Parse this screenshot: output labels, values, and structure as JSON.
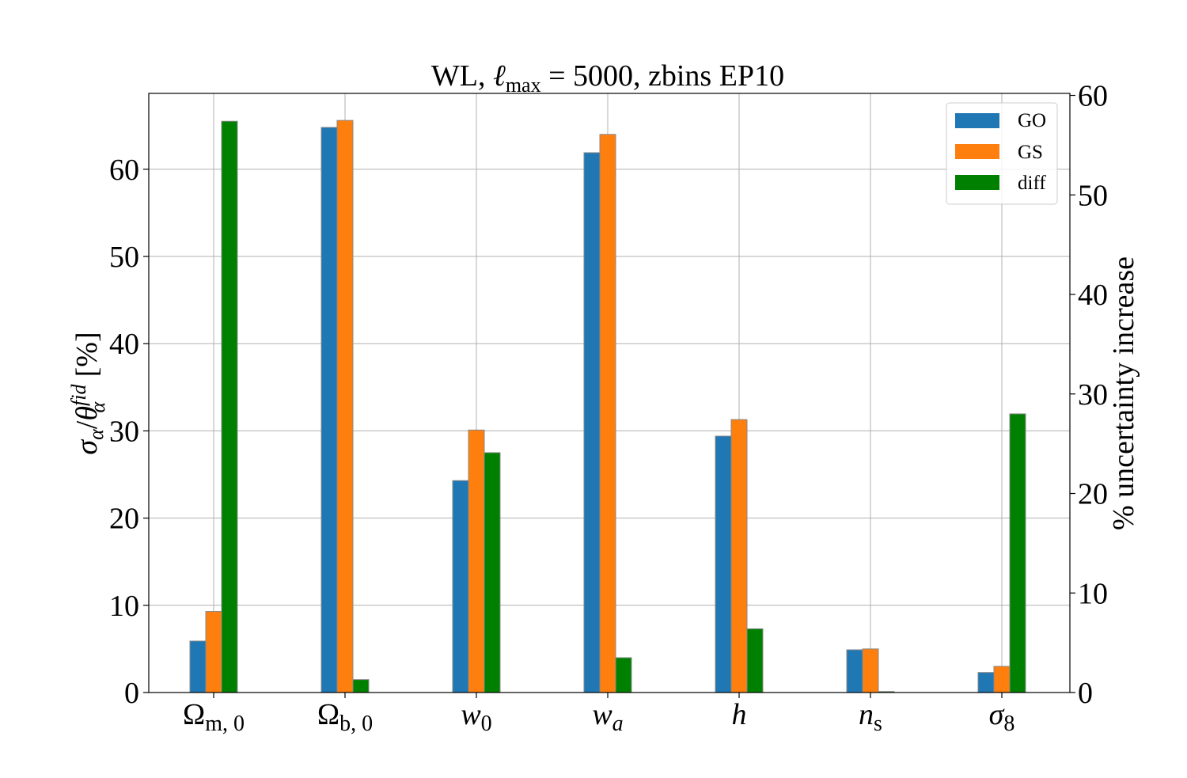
{
  "chart_data": {
    "type": "bar",
    "title": "WL, ℓmax = 5000, zbins EP10",
    "title_parts": {
      "pre": "WL, ",
      "ell": "ℓ",
      "sub": "max",
      "post": " = 5000, zbins EP10"
    },
    "categories": [
      {
        "base": "Ω",
        "sub": "m, 0",
        "italic": false,
        "sub_italic": false
      },
      {
        "base": "Ω",
        "sub": "b, 0",
        "italic": false,
        "sub_italic": false
      },
      {
        "base": "w",
        "sub": "0",
        "italic": true,
        "sub_italic": false
      },
      {
        "base": "w",
        "sub": "a",
        "italic": true,
        "sub_italic": true
      },
      {
        "base": "h",
        "sub": "",
        "italic": true,
        "sub_italic": false
      },
      {
        "base": "n",
        "sub": "s",
        "italic": true,
        "sub_italic": false
      },
      {
        "base": "σ",
        "sub": "8",
        "italic": true,
        "sub_italic": false
      }
    ],
    "series": [
      {
        "name": "GO",
        "axis": "left",
        "color": "#1f77b4",
        "values": [
          5.9,
          64.8,
          24.3,
          61.9,
          29.4,
          4.9,
          2.3
        ]
      },
      {
        "name": "GS",
        "axis": "left",
        "color": "#ff7f0e",
        "values": [
          9.3,
          65.6,
          30.1,
          64.0,
          31.3,
          5.0,
          3.0
        ]
      },
      {
        "name": "diff",
        "axis": "right",
        "color": "#008000",
        "values": [
          57.4,
          1.3,
          24.1,
          3.5,
          6.4,
          0.1,
          28.0
        ]
      }
    ],
    "ylabel_left": {
      "sigma": "σ",
      "sigma_sub": "α",
      "slash": "/",
      "theta": "θ",
      "theta_sub": "α",
      "theta_sup": "fid",
      "unit": " [%]"
    },
    "ylabel_right": "% uncertainty increase",
    "ylim_left": [
      0,
      68.7
    ],
    "ylim_right": [
      0,
      60.2
    ],
    "yticks_left": [
      "0",
      "10",
      "20",
      "30",
      "40",
      "50",
      "60"
    ],
    "yticks_right": [
      "0",
      "10",
      "20",
      "30",
      "40",
      "50",
      "60"
    ],
    "grid": true,
    "legend_position": "top-right"
  }
}
